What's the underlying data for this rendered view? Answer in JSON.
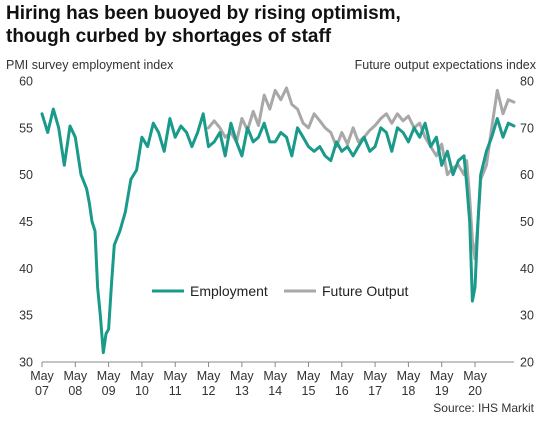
{
  "title_line1": "Hiring has been buoyed by rising optimism,",
  "title_line2": "though curbed by shortages of staff",
  "source": "Source: IHS Markit",
  "chart_data": {
    "type": "line",
    "ylabel": "PMI survey employment index",
    "y2label": "Future output expectations index",
    "ylim": [
      30,
      60
    ],
    "y2lim": [
      20,
      80
    ],
    "yticks": [
      30,
      35,
      40,
      45,
      50,
      55,
      60
    ],
    "y2ticks": [
      20,
      30,
      40,
      50,
      60,
      70,
      80
    ],
    "xlim": [
      2007.33,
      2021.5
    ],
    "xtick_positions": [
      2007.33,
      2008.33,
      2009.33,
      2010.33,
      2011.33,
      2012.33,
      2013.33,
      2014.33,
      2015.33,
      2016.33,
      2017.33,
      2018.33,
      2019.33,
      2020.33
    ],
    "xtick_labels": [
      [
        "May",
        "07"
      ],
      [
        "May",
        "08"
      ],
      [
        "May",
        "09"
      ],
      [
        "May",
        "10"
      ],
      [
        "May",
        "11"
      ],
      [
        "May",
        "12"
      ],
      [
        "May",
        "13"
      ],
      [
        "May",
        "14"
      ],
      [
        "May",
        "15"
      ],
      [
        "May",
        "16"
      ],
      [
        "May",
        "17"
      ],
      [
        "May",
        "18"
      ],
      [
        "May",
        "19"
      ],
      [
        "May",
        "20"
      ]
    ],
    "grid": false,
    "legend_position": "center",
    "series": [
      {
        "name": "Employment",
        "axis": "left",
        "color": "#1a9a8a",
        "x": [
          2007.33,
          2007.5,
          2007.67,
          2007.83,
          2008.0,
          2008.17,
          2008.33,
          2008.5,
          2008.67,
          2008.75,
          2008.83,
          2008.92,
          2009.0,
          2009.08,
          2009.17,
          2009.25,
          2009.33,
          2009.42,
          2009.5,
          2009.67,
          2009.83,
          2010.0,
          2010.17,
          2010.33,
          2010.5,
          2010.67,
          2010.83,
          2011.0,
          2011.17,
          2011.33,
          2011.5,
          2011.67,
          2011.83,
          2012.0,
          2012.17,
          2012.33,
          2012.5,
          2012.67,
          2012.83,
          2013.0,
          2013.17,
          2013.33,
          2013.5,
          2013.67,
          2013.83,
          2014.0,
          2014.17,
          2014.33,
          2014.5,
          2014.67,
          2014.83,
          2015.0,
          2015.17,
          2015.33,
          2015.5,
          2015.67,
          2015.83,
          2016.0,
          2016.17,
          2016.33,
          2016.5,
          2016.67,
          2016.83,
          2017.0,
          2017.17,
          2017.33,
          2017.5,
          2017.67,
          2017.83,
          2018.0,
          2018.17,
          2018.33,
          2018.5,
          2018.67,
          2018.83,
          2019.0,
          2019.17,
          2019.33,
          2019.5,
          2019.67,
          2019.83,
          2020.0,
          2020.08,
          2020.17,
          2020.25,
          2020.33,
          2020.42,
          2020.5,
          2020.67,
          2020.83,
          2021.0,
          2021.17,
          2021.33,
          2021.5
        ],
        "y": [
          56.5,
          54.5,
          57.0,
          55.0,
          51.0,
          55.2,
          54.0,
          50.0,
          48.5,
          47.0,
          45.0,
          44.0,
          38.0,
          35.0,
          31.0,
          33.0,
          33.5,
          38.5,
          42.5,
          44.0,
          46.0,
          49.5,
          50.5,
          54.0,
          53.0,
          55.5,
          54.5,
          52.5,
          56.0,
          54.0,
          55.2,
          54.5,
          53.0,
          54.5,
          56.5,
          53.0,
          53.5,
          54.5,
          52.0,
          55.5,
          53.5,
          52.0,
          55.0,
          53.5,
          54.0,
          55.5,
          53.5,
          53.5,
          54.5,
          54.0,
          52.0,
          55.0,
          54.0,
          53.0,
          52.5,
          53.0,
          52.0,
          51.5,
          53.5,
          52.5,
          53.0,
          52.0,
          53.0,
          54.0,
          52.5,
          53.0,
          55.0,
          54.5,
          52.5,
          55.0,
          54.5,
          53.5,
          55.0,
          54.0,
          55.5,
          53.0,
          54.0,
          51.0,
          52.5,
          50.0,
          51.5,
          52.0,
          49.0,
          45.0,
          36.5,
          38.0,
          45.0,
          50.0,
          52.5,
          54.0,
          56.0,
          54.0,
          55.5,
          55.2
        ]
      },
      {
        "name": "Future Output",
        "axis": "right",
        "color": "#a8a8a8",
        "x": [
          2012.33,
          2012.5,
          2012.67,
          2012.83,
          2013.0,
          2013.17,
          2013.33,
          2013.5,
          2013.67,
          2013.83,
          2014.0,
          2014.17,
          2014.33,
          2014.5,
          2014.67,
          2014.83,
          2015.0,
          2015.17,
          2015.33,
          2015.5,
          2015.67,
          2015.83,
          2016.0,
          2016.17,
          2016.33,
          2016.5,
          2016.67,
          2016.83,
          2017.0,
          2017.17,
          2017.33,
          2017.5,
          2017.67,
          2017.83,
          2018.0,
          2018.17,
          2018.33,
          2018.5,
          2018.67,
          2018.83,
          2019.0,
          2019.17,
          2019.33,
          2019.5,
          2019.67,
          2019.83,
          2020.0,
          2020.08,
          2020.17,
          2020.25,
          2020.33,
          2020.42,
          2020.5,
          2020.67,
          2020.83,
          2021.0,
          2021.17,
          2021.33,
          2021.5
        ],
        "y": [
          70.0,
          71.5,
          70.0,
          68.0,
          69.0,
          67.0,
          72.0,
          69.5,
          73.5,
          70.5,
          77.0,
          74.0,
          78.0,
          76.0,
          78.5,
          75.0,
          74.0,
          71.0,
          70.0,
          73.0,
          71.5,
          70.0,
          69.0,
          66.0,
          69.0,
          66.5,
          70.0,
          67.0,
          68.0,
          69.5,
          70.5,
          72.0,
          73.0,
          71.0,
          73.0,
          71.5,
          72.5,
          70.0,
          71.0,
          68.0,
          66.0,
          64.0,
          66.5,
          60.0,
          61.5,
          62.0,
          60.0,
          63.0,
          55.0,
          46.0,
          42.0,
          50.0,
          59.0,
          62.0,
          70.0,
          78.0,
          73.0,
          76.0,
          75.5
        ]
      }
    ]
  }
}
